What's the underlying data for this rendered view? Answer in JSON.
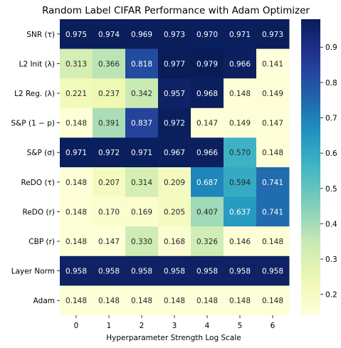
{
  "chart_data": {
    "type": "heatmap",
    "title": "Random Label CIFAR Performance with Adam Optimizer",
    "xlabel": "Hyperparameter Strength Log Scale",
    "ylabel": "",
    "x_categories": [
      "0",
      "1",
      "2",
      "3",
      "4",
      "5",
      "6"
    ],
    "y_categories": [
      "SNR (τ)",
      "L2 Init (λ)",
      "L2 Reg. (λ)",
      "S&P (1 − p)",
      "S&P (σ)",
      "ReDO (τ)",
      "ReDO (r)",
      "CBP (r)",
      "Layer Norm",
      "Adam"
    ],
    "values": [
      [
        0.975,
        0.974,
        0.969,
        0.973,
        0.97,
        0.971,
        0.973
      ],
      [
        0.313,
        0.366,
        0.818,
        0.977,
        0.979,
        0.966,
        0.141
      ],
      [
        0.221,
        0.237,
        0.342,
        0.957,
        0.968,
        0.148,
        0.149
      ],
      [
        0.148,
        0.391,
        0.837,
        0.972,
        0.147,
        0.149,
        0.147
      ],
      [
        0.971,
        0.972,
        0.971,
        0.967,
        0.966,
        0.57,
        0.148
      ],
      [
        0.148,
        0.207,
        0.314,
        0.209,
        0.687,
        0.594,
        0.741
      ],
      [
        0.148,
        0.17,
        0.169,
        0.205,
        0.407,
        0.637,
        0.741
      ],
      [
        0.148,
        0.147,
        0.33,
        0.168,
        0.326,
        0.146,
        0.148
      ],
      [
        0.958,
        0.958,
        0.958,
        0.958,
        0.958,
        0.958,
        0.958
      ],
      [
        0.148,
        0.148,
        0.148,
        0.148,
        0.148,
        0.148,
        0.148
      ]
    ],
    "colorbar": {
      "colormap": "YlGnBu",
      "vmin": 0.141,
      "vmax": 0.979,
      "ticks": [
        "0.2",
        "0.3",
        "0.4",
        "0.5",
        "0.6",
        "0.7",
        "0.8",
        "0.9"
      ]
    }
  }
}
